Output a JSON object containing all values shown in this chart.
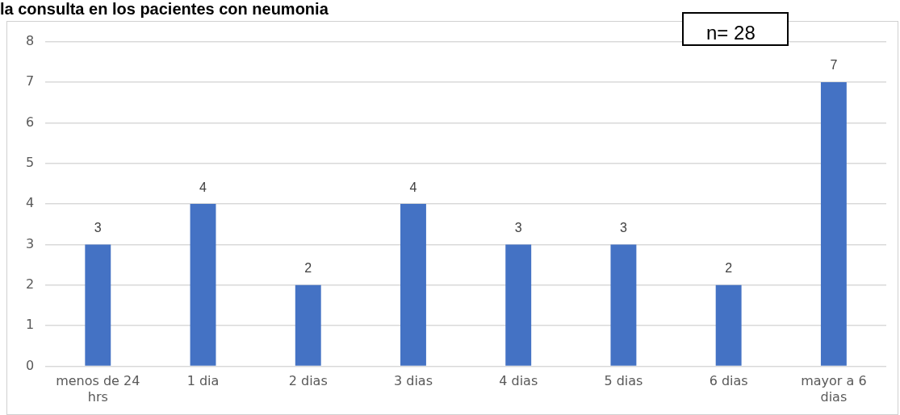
{
  "chart_data": {
    "type": "bar",
    "title": "la consulta en los pacientes con neumonia",
    "categories": [
      "menos de 24 hrs",
      "1 dia",
      "2 dias",
      "3 dias",
      "4 dias",
      "5 dias",
      "6 dias",
      "mayor a 6 dias"
    ],
    "values": [
      3,
      4,
      2,
      4,
      3,
      3,
      2,
      7
    ],
    "color": "#4472c4",
    "ylim": [
      0,
      8
    ],
    "yticks": [
      0,
      1,
      2,
      3,
      4,
      5,
      6,
      7,
      8
    ],
    "grid": "y",
    "data_labels": true,
    "annotations": [
      "n= 28"
    ]
  }
}
